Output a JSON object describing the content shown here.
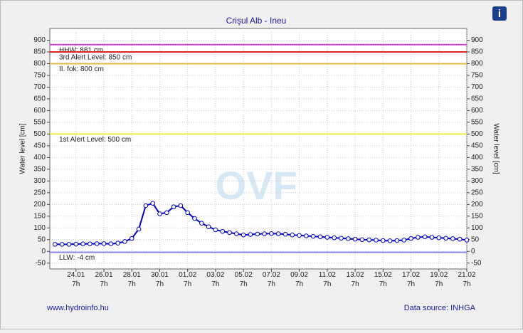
{
  "chart_data": {
    "type": "line",
    "title": "Crişul Alb - Ineu",
    "y_label": "Water level [cm]",
    "y2_label": "Water level [cm]",
    "footer_left": "www.hydroinfo.hu",
    "footer_right": "Data source: INHGA",
    "watermark": "OVF",
    "info_icon": "i",
    "xlim": [
      "22.01 10h",
      "21.02 7h"
    ],
    "xticks": [
      "24.01 7h",
      "26.01 7h",
      "28.01 7h",
      "30.01 7h",
      "01.02 7h",
      "03.02 7h",
      "05.02 7h",
      "07.02 7h",
      "09.02 7h",
      "11.02 7h",
      "13.02 7h",
      "15.02 7h",
      "17.02 7h",
      "19.02 7h",
      "21.02 7h"
    ],
    "ylim": [
      -75,
      950
    ],
    "yticks": [
      -50,
      0,
      50,
      100,
      150,
      200,
      250,
      300,
      350,
      400,
      450,
      500,
      550,
      600,
      650,
      700,
      750,
      800,
      850,
      900
    ],
    "grid": true,
    "thresholds": [
      {
        "value": 881,
        "label": "HHW: 881 cm",
        "color": "#cc44cc"
      },
      {
        "value": 850,
        "label": "3rd Alert Level: 850 cm",
        "color": "#dd2222"
      },
      {
        "value": 800,
        "label": "II. fok: 800 cm",
        "color": "#e6b84a"
      },
      {
        "value": 500,
        "label": "1st Alert Level: 500 cm",
        "color": "#eeee44"
      },
      {
        "value": -4,
        "label": "LLW: -4 cm",
        "color": "#8888ee"
      }
    ],
    "series": [
      {
        "name": "Water level",
        "color": "#0000cc",
        "x": [
          "22.01 19h",
          "23.01 7h",
          "23.01 19h",
          "24.01 7h",
          "24.01 19h",
          "25.01 7h",
          "25.01 19h",
          "26.01 7h",
          "26.01 19h",
          "27.01 7h",
          "27.01 19h",
          "28.01 7h",
          "28.01 19h",
          "29.01 7h",
          "29.01 19h",
          "30.01 7h",
          "30.01 19h",
          "31.01 7h",
          "31.01 19h",
          "01.02 7h",
          "01.02 19h",
          "02.02 7h",
          "02.02 19h",
          "03.02 7h",
          "03.02 19h",
          "04.02 7h",
          "04.02 19h",
          "05.02 7h",
          "05.02 19h",
          "06.02 7h",
          "06.02 19h",
          "07.02 7h",
          "07.02 19h",
          "08.02 7h",
          "08.02 19h",
          "09.02 7h",
          "09.02 19h",
          "10.02 7h",
          "10.02 19h",
          "11.02 7h",
          "11.02 19h",
          "12.02 7h",
          "12.02 19h",
          "13.02 7h",
          "13.02 19h",
          "14.02 7h",
          "14.02 19h",
          "15.02 7h",
          "15.02 19h",
          "16.02 7h",
          "16.02 19h",
          "17.02 7h",
          "17.02 19h",
          "18.02 7h",
          "18.02 19h",
          "19.02 7h",
          "19.02 19h",
          "20.02 7h",
          "20.02 19h",
          "21.02 7h"
        ],
        "values": [
          30,
          30,
          30,
          31,
          32,
          32,
          33,
          33,
          32,
          35,
          42,
          55,
          95,
          195,
          205,
          160,
          165,
          190,
          195,
          165,
          140,
          120,
          105,
          92,
          85,
          80,
          75,
          70,
          72,
          74,
          75,
          76,
          75,
          73,
          70,
          68,
          66,
          64,
          62,
          60,
          58,
          56,
          54,
          52,
          50,
          49,
          48,
          46,
          45,
          46,
          48,
          55,
          60,
          62,
          60,
          58,
          56,
          54,
          52,
          48
        ]
      }
    ]
  }
}
